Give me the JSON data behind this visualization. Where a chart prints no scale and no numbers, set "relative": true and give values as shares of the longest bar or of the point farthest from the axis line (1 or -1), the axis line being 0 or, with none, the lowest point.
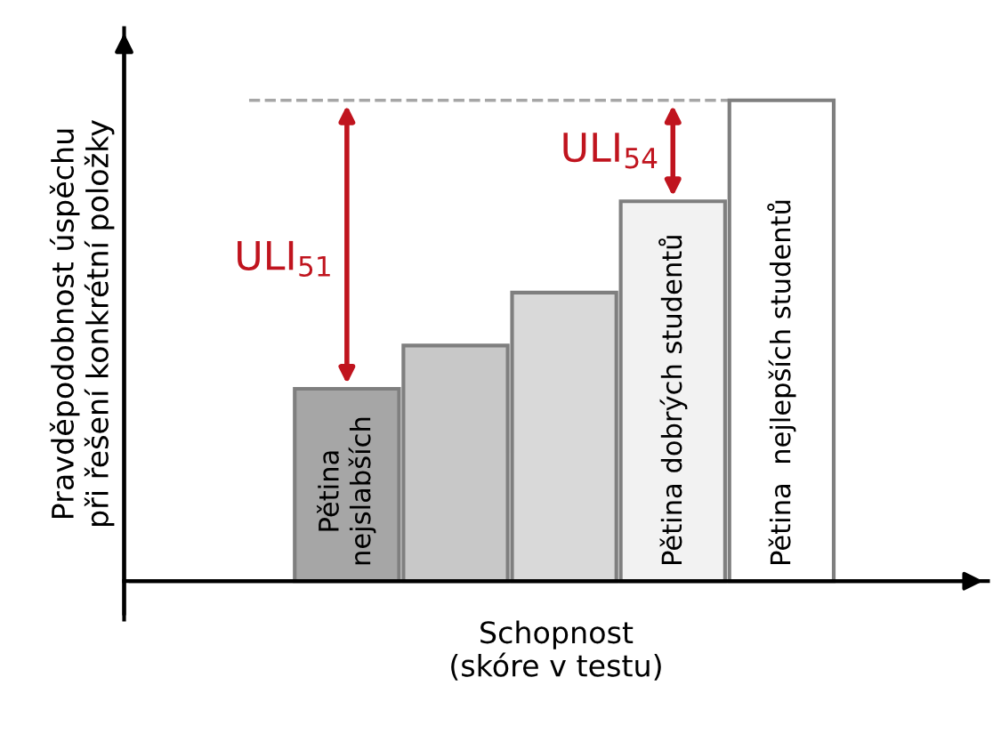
{
  "chart_data": {
    "type": "bar",
    "relative": true,
    "xlabel": "Schopnost\n(skóre v testu)",
    "ylabel": "Pravděpodobnost úspěchu\npři řešení konkrétní položky",
    "categories": [
      "Pětina\nnejslabších",
      null,
      null,
      "Pětina dobrých studentů",
      "Pětina  nejlepších studentů"
    ],
    "values": [
      0.4,
      0.49,
      0.6,
      0.79,
      1.0
    ],
    "colors": [
      "#a6a6a6",
      "#c8c8c8",
      "#d9d9d9",
      "#f2f2f2",
      "#ffffff"
    ],
    "ref_lines": [
      {
        "axis": "y",
        "value": 1.0,
        "label": null,
        "color": "#a6a6a6",
        "line_style": "dashed"
      }
    ],
    "annotations": [
      {
        "text": "ULI$_{51}$",
        "x": "Pětina\nnejslabších",
        "y": 0.4
      },
      {
        "text": "ULI$_{54}$",
        "x": "Pětina dobrých studentů",
        "y": 0.79
      }
    ],
    "legend": false
  }
}
